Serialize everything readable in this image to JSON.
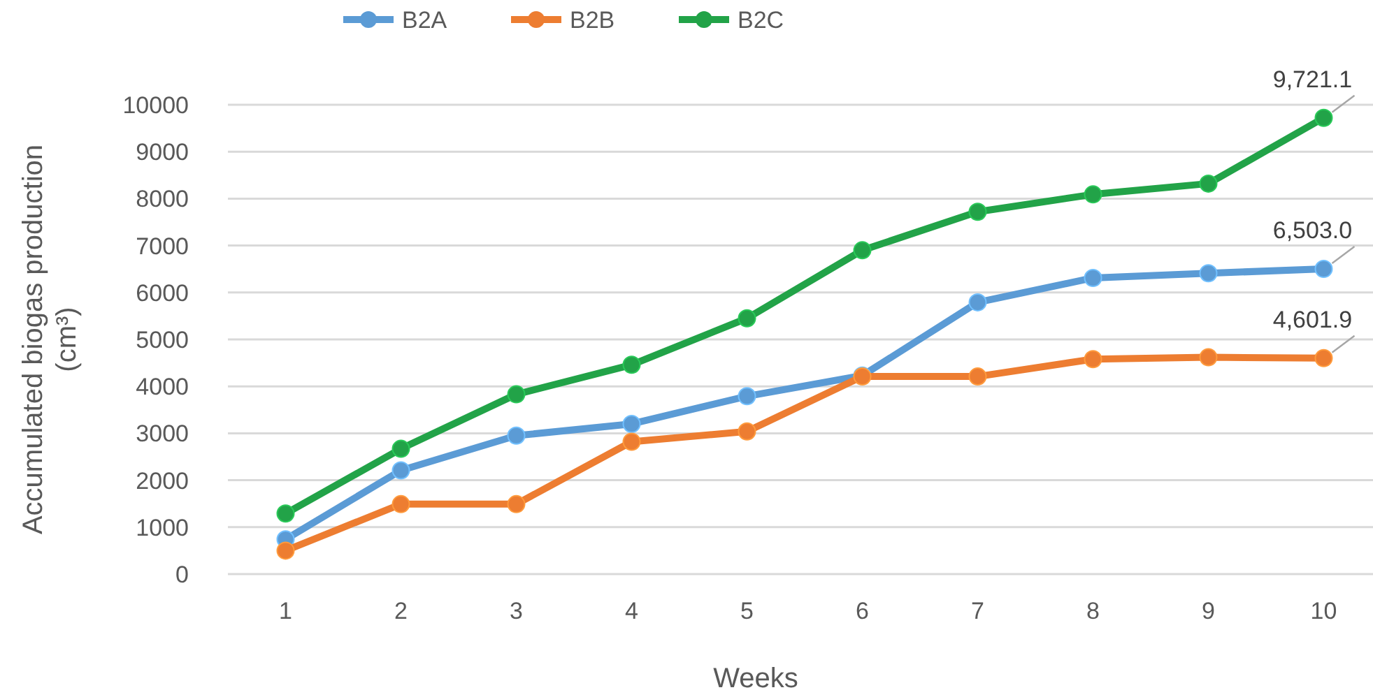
{
  "chart_data": {
    "type": "line",
    "xlabel": "Weeks",
    "ylabel": "Accumulated biogas production (cm³)",
    "categories": [
      "1",
      "2",
      "3",
      "4",
      "5",
      "6",
      "7",
      "8",
      "9",
      "10"
    ],
    "series": [
      {
        "name": "B2A",
        "color": "#5b9bd5",
        "values": [
          740,
          2210,
          2950,
          3200,
          3790,
          4230,
          5790,
          6310,
          6410,
          6503.0
        ],
        "value_labels": [
          null,
          null,
          null,
          null,
          null,
          null,
          null,
          null,
          null,
          "6,503.0"
        ]
      },
      {
        "name": "B2B",
        "color": "#ed7d31",
        "values": [
          500,
          1490,
          1490,
          2820,
          3040,
          4210,
          4210,
          4580,
          4620,
          4601.9
        ],
        "value_labels": [
          null,
          null,
          null,
          null,
          null,
          null,
          null,
          null,
          null,
          "4,601.9"
        ]
      },
      {
        "name": "B2C",
        "color": "#22a348",
        "values": [
          1290,
          2670,
          3830,
          4460,
          5450,
          6900,
          7720,
          8090,
          8320,
          9721.1
        ],
        "value_labels": [
          null,
          null,
          null,
          null,
          null,
          null,
          null,
          null,
          null,
          "9,721.1"
        ]
      }
    ],
    "ylim": [
      0,
      10000
    ],
    "yticks": [
      0,
      1000,
      2000,
      3000,
      4000,
      5000,
      6000,
      7000,
      8000,
      9000,
      10000
    ],
    "grid": "y",
    "legend": "top",
    "marker": "circle",
    "line_style": "solid"
  }
}
